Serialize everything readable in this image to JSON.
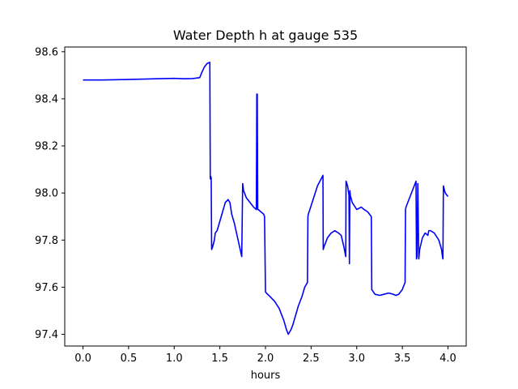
{
  "chart_data": {
    "type": "line",
    "title": "Water Depth h at gauge 535",
    "xlabel": "hours",
    "ylabel": "",
    "xlim": [
      -0.2,
      4.2
    ],
    "ylim": [
      97.35,
      98.62
    ],
    "xticks": [
      0.0,
      0.5,
      1.0,
      1.5,
      2.0,
      2.5,
      3.0,
      3.5,
      4.0
    ],
    "xtick_labels": [
      "0.0",
      "0.5",
      "1.0",
      "1.5",
      "2.0",
      "2.5",
      "3.0",
      "3.5",
      "4.0"
    ],
    "yticks": [
      97.4,
      97.6,
      97.8,
      98.0,
      98.2,
      98.4,
      98.6
    ],
    "ytick_labels": [
      "97.4",
      "97.6",
      "97.8",
      "98.0",
      "98.2",
      "98.4",
      "98.6"
    ],
    "grid": false,
    "line_color": "#0000ff",
    "series": [
      {
        "x": [
          0.0,
          0.2,
          0.5,
          0.8,
          1.0,
          1.1,
          1.2,
          1.28,
          1.3,
          1.33,
          1.36,
          1.39,
          1.395,
          1.4,
          1.405,
          1.41,
          1.42,
          1.44,
          1.45,
          1.47,
          1.5,
          1.53,
          1.56,
          1.59,
          1.61,
          1.63,
          1.66,
          1.7,
          1.74,
          1.75,
          1.76,
          1.79,
          1.83,
          1.87,
          1.9,
          1.905,
          1.91,
          1.915,
          1.92,
          1.95,
          1.98,
          1.99,
          2.0,
          2.01,
          2.05,
          2.1,
          2.15,
          2.2,
          2.23,
          2.25,
          2.28,
          2.3,
          2.33,
          2.36,
          2.4,
          2.43,
          2.46,
          2.465,
          2.47,
          2.52,
          2.57,
          2.61,
          2.63,
          2.633,
          2.64,
          2.68,
          2.72,
          2.76,
          2.8,
          2.83,
          2.86,
          2.88,
          2.883,
          2.9,
          2.915,
          2.92,
          2.925,
          2.93,
          2.95,
          3.0,
          3.05,
          3.08,
          3.12,
          3.16,
          3.165,
          3.2,
          3.25,
          3.3,
          3.35,
          3.4,
          3.43,
          3.46,
          3.5,
          3.53,
          3.535,
          3.54,
          3.57,
          3.6,
          3.63,
          3.65,
          3.655,
          3.66,
          3.67,
          3.68,
          3.683,
          3.69,
          3.72,
          3.75,
          3.78,
          3.79,
          3.8,
          3.81,
          3.85,
          3.9,
          3.93,
          3.94,
          3.945,
          3.95,
          3.97,
          4.0
        ],
        "y": [
          98.48,
          98.48,
          98.482,
          98.485,
          98.487,
          98.485,
          98.486,
          98.49,
          98.51,
          98.535,
          98.55,
          98.555,
          98.06,
          98.07,
          98.065,
          97.76,
          97.77,
          97.8,
          97.83,
          97.84,
          97.88,
          97.92,
          97.96,
          97.972,
          97.96,
          97.91,
          97.87,
          97.8,
          97.73,
          98.04,
          98.01,
          97.98,
          97.96,
          97.94,
          97.93,
          98.42,
          98.42,
          97.93,
          97.93,
          97.92,
          97.91,
          97.9,
          97.58,
          97.575,
          97.56,
          97.54,
          97.51,
          97.46,
          97.42,
          97.4,
          97.42,
          97.44,
          97.48,
          97.52,
          97.56,
          97.6,
          97.62,
          97.9,
          97.91,
          97.97,
          98.03,
          98.06,
          98.075,
          97.76,
          97.77,
          97.81,
          97.83,
          97.84,
          97.83,
          97.82,
          97.77,
          97.73,
          98.05,
          98.03,
          97.99,
          97.7,
          98.01,
          97.99,
          97.96,
          97.93,
          97.94,
          97.93,
          97.92,
          97.9,
          97.59,
          97.57,
          97.565,
          97.57,
          97.575,
          97.57,
          97.565,
          97.57,
          97.59,
          97.62,
          97.93,
          97.94,
          97.97,
          98.0,
          98.03,
          98.05,
          97.72,
          97.73,
          98.04,
          97.72,
          97.73,
          97.76,
          97.81,
          97.83,
          97.82,
          97.84,
          97.84,
          97.84,
          97.83,
          97.8,
          97.76,
          97.73,
          97.72,
          98.03,
          98.0,
          97.985
        ]
      }
    ]
  }
}
